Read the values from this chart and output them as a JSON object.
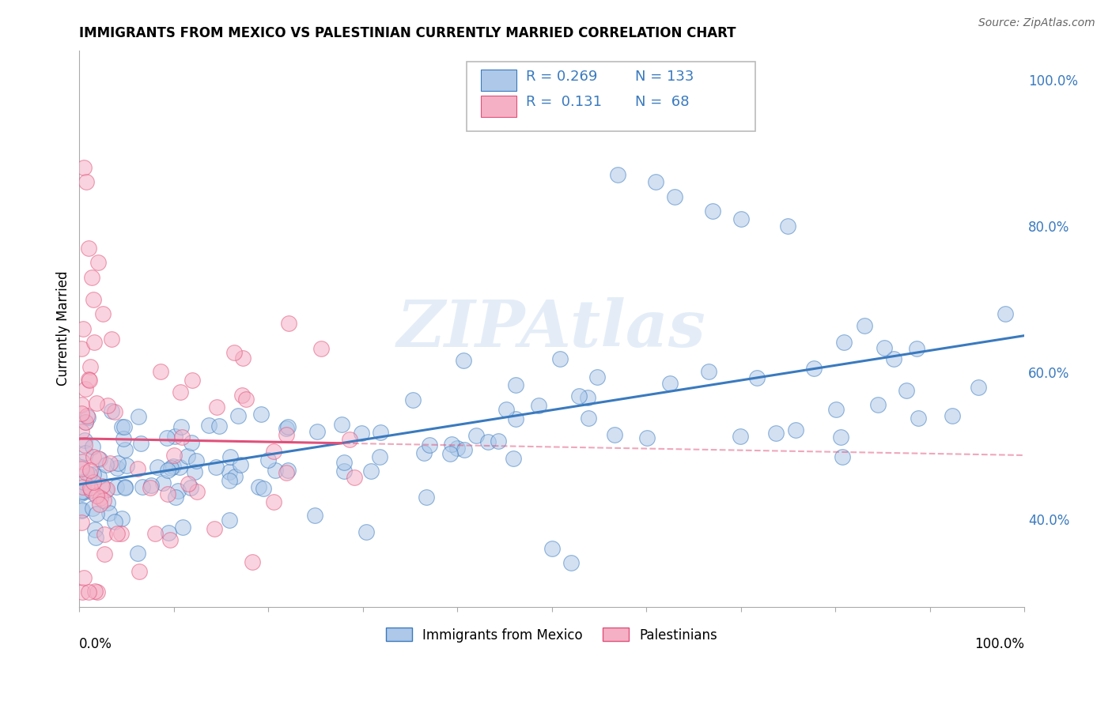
{
  "title": "IMMIGRANTS FROM MEXICO VS PALESTINIAN CURRENTLY MARRIED CORRELATION CHART",
  "source_text": "Source: ZipAtlas.com",
  "ylabel": "Currently Married",
  "legend_blue_r": "R = 0.269",
  "legend_blue_n": "N = 133",
  "legend_pink_r": "R =  0.131",
  "legend_pink_n": "N =  68",
  "legend_label_blue": "Immigrants from Mexico",
  "legend_label_pink": "Palestinians",
  "blue_color": "#adc8e8",
  "pink_color": "#f5b0c5",
  "blue_line_color": "#3a7abf",
  "pink_line_color": "#e0507a",
  "legend_text_color": "#3a7abf",
  "right_ytick_vals": [
    0.4,
    0.6,
    0.8,
    1.0
  ],
  "right_ytick_labels": [
    "40.0%",
    "60.0%",
    "80.0%",
    "100.0%"
  ],
  "grid_color": "#c8c8c8",
  "watermark_text": "ZIPAtlas",
  "blue_intercept": 0.455,
  "blue_slope": 0.13,
  "pink_intercept": 0.46,
  "pink_slope": 0.28,
  "ymin": 0.28,
  "ymax": 1.04
}
